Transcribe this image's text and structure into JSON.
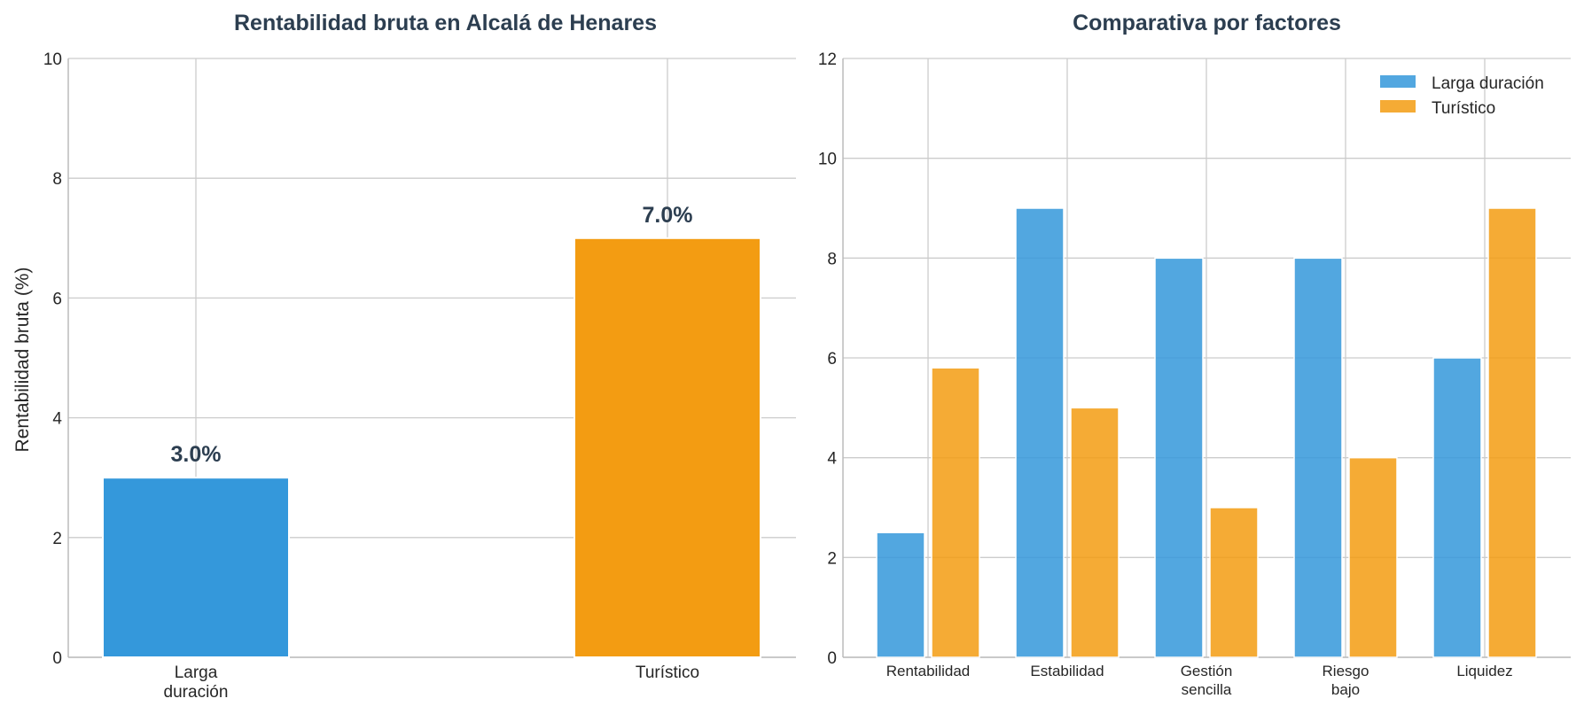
{
  "chart_data": [
    {
      "type": "bar",
      "title": "Rentabilidad bruta en Alcalá de Henares",
      "xlabel": "",
      "ylabel": "Rentabilidad bruta (%)",
      "ylim": [
        0,
        10
      ],
      "yticks": [
        "0",
        "2",
        "4",
        "6",
        "8",
        "10"
      ],
      "categories": [
        [
          "Larga",
          "duración"
        ],
        [
          "Turístico"
        ]
      ],
      "values": [
        3.0,
        7.0
      ],
      "data_labels": [
        "3.0%",
        "7.0%"
      ],
      "colors": [
        "#3498db",
        "#f39c12"
      ],
      "grid": true
    },
    {
      "type": "bar",
      "title": "Comparativa por factores",
      "xlabel": "",
      "ylabel": "",
      "ylim": [
        0,
        12
      ],
      "yticks": [
        "0",
        "2",
        "4",
        "6",
        "8",
        "10",
        "12"
      ],
      "categories": [
        [
          "Rentabilidad"
        ],
        [
          "Estabilidad"
        ],
        [
          "Gestión",
          "sencilla"
        ],
        [
          "Riesgo",
          "bajo"
        ],
        [
          "Liquidez"
        ]
      ],
      "series": [
        {
          "name": "Larga duración",
          "values": [
            2.5,
            9,
            8,
            8,
            6
          ],
          "color": "#3498db"
        },
        {
          "name": "Turístico",
          "values": [
            5.8,
            5,
            3,
            4,
            9
          ],
          "color": "#f39c12"
        }
      ],
      "legend": "top-right",
      "grid": true
    }
  ]
}
